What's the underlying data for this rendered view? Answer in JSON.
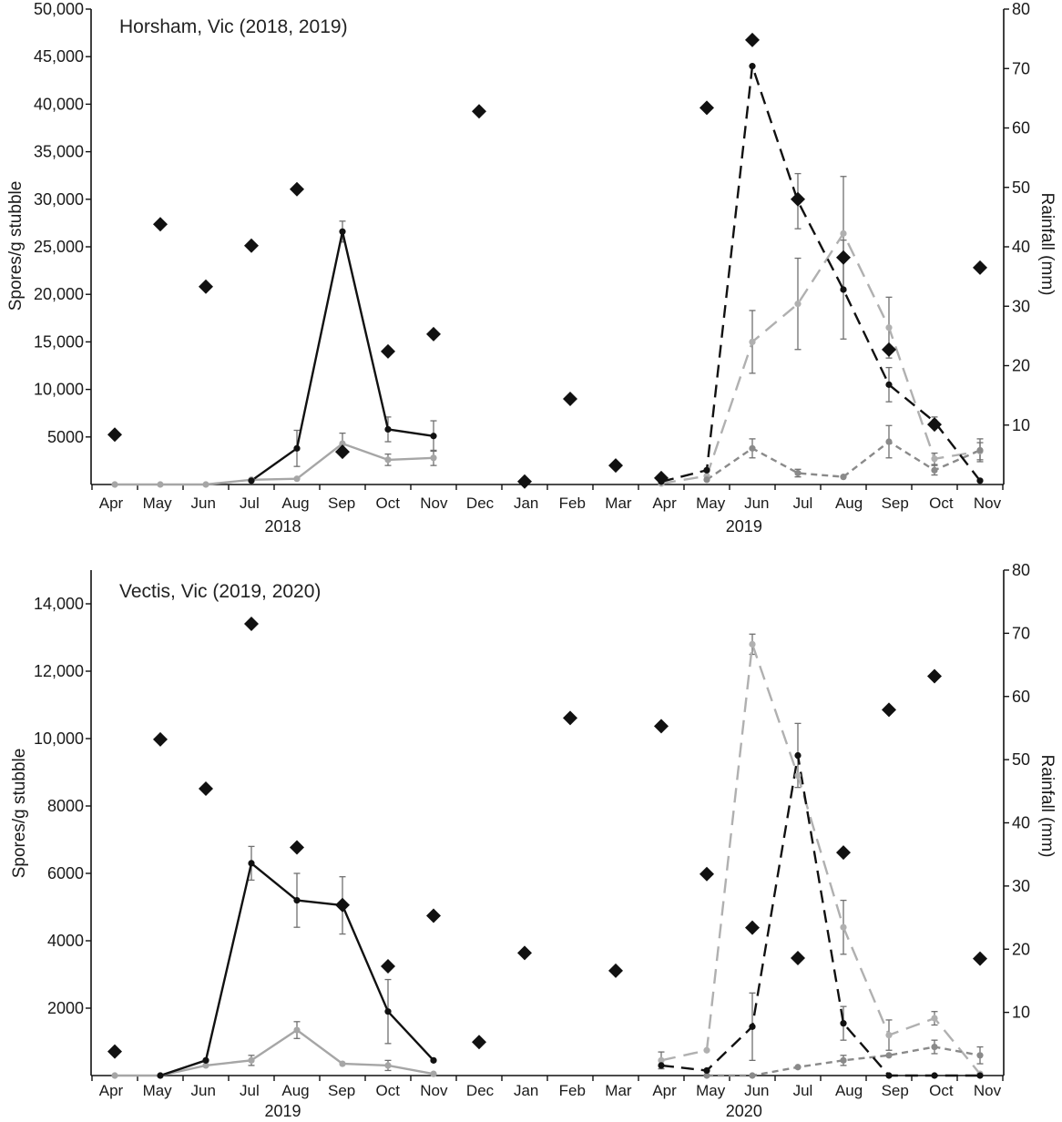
{
  "chart_data": [
    {
      "type": "line",
      "title": "Horsham, Vic (2018, 2019)",
      "ylabel": "Spores/g stubble",
      "y2label": "Rainfall (mm)",
      "ylim": [
        0,
        50000
      ],
      "y2lim": [
        0,
        80
      ],
      "grid": false,
      "yticks": [
        {
          "value": 5000,
          "label": "5000"
        },
        {
          "value": 10000,
          "label": "10,000"
        },
        {
          "value": 15000,
          "label": "15,000"
        },
        {
          "value": 20000,
          "label": "20,000"
        },
        {
          "value": 25000,
          "label": "25,000"
        },
        {
          "value": 30000,
          "label": "30,000"
        },
        {
          "value": 35000,
          "label": "35,000"
        },
        {
          "value": 40000,
          "label": "40,000"
        },
        {
          "value": 45000,
          "label": "45,000"
        },
        {
          "value": 50000,
          "label": "50,000"
        }
      ],
      "y2ticks": [
        {
          "value": 10,
          "label": "10"
        },
        {
          "value": 20,
          "label": "20"
        },
        {
          "value": 30,
          "label": "30"
        },
        {
          "value": 40,
          "label": "40"
        },
        {
          "value": 50,
          "label": "50"
        },
        {
          "value": 60,
          "label": "60"
        },
        {
          "value": 70,
          "label": "70"
        },
        {
          "value": 80,
          "label": "80"
        }
      ],
      "categories": [
        "Apr",
        "May",
        "Jun",
        "Jul",
        "Aug",
        "Sep",
        "Oct",
        "Nov",
        "Dec",
        "Jan",
        "Feb",
        "Mar",
        "Apr",
        "May",
        "Jun",
        "Jul",
        "Aug",
        "Sep",
        "Oct",
        "Nov"
      ],
      "years": [
        {
          "label": "2018",
          "from": 0,
          "to": 8
        },
        {
          "label": "2019",
          "from": 9,
          "to": 19
        }
      ],
      "rainfall": {
        "color": "#111111",
        "values": [
          8.4,
          43.8,
          33.3,
          40.2,
          49.7,
          5.5,
          22.4,
          25.3,
          62.8,
          0.5,
          14.4,
          3.2,
          1.1,
          63.4,
          74.8,
          48.0,
          38.2,
          22.7,
          10.1,
          36.5
        ]
      },
      "series": [
        {
          "color": "#111111",
          "values": [
            null,
            null,
            null,
            400,
            3800,
            26600,
            5800,
            5100,
            null,
            null,
            null,
            null,
            null,
            null,
            null,
            null,
            null,
            null,
            null,
            null
          ],
          "errors": [
            null,
            null,
            null,
            null,
            1900,
            1100,
            1300,
            1600,
            null,
            null,
            null,
            null,
            null,
            null,
            null,
            null,
            null,
            null,
            null,
            null
          ]
        },
        {
          "color": "#a6a6a6",
          "values": [
            0,
            0,
            0,
            500,
            600,
            4300,
            2600,
            2800,
            null,
            null,
            null,
            null,
            null,
            null,
            null,
            null,
            null,
            null,
            null,
            null
          ],
          "errors": [
            null,
            null,
            null,
            null,
            null,
            1100,
            600,
            800,
            null,
            null,
            null,
            null,
            null,
            null,
            null,
            null,
            null,
            null,
            null,
            null
          ]
        },
        {
          "color": "#111111",
          "values": [
            null,
            null,
            null,
            null,
            null,
            null,
            null,
            null,
            null,
            null,
            null,
            null,
            300,
            1500,
            44000,
            29800,
            20500,
            10500,
            6600,
            400
          ],
          "errors": [
            null,
            null,
            null,
            null,
            null,
            null,
            null,
            null,
            null,
            null,
            null,
            null,
            null,
            null,
            null,
            2900,
            5200,
            1800,
            500,
            null
          ]
        },
        {
          "color": "#b0b0b0",
          "values": [
            null,
            null,
            null,
            null,
            null,
            null,
            null,
            null,
            null,
            null,
            null,
            null,
            100,
            900,
            15000,
            19000,
            26400,
            16500,
            2700,
            3500
          ],
          "errors": [
            null,
            null,
            null,
            null,
            null,
            null,
            null,
            null,
            null,
            null,
            null,
            null,
            null,
            null,
            3300,
            4800,
            6000,
            3200,
            600,
            900
          ]
        },
        {
          "color": "#8a8a8a",
          "values": [
            null,
            null,
            null,
            null,
            null,
            null,
            null,
            null,
            null,
            null,
            null,
            null,
            null,
            500,
            3800,
            1200,
            800,
            4500,
            1500,
            3600
          ],
          "errors": [
            null,
            null,
            null,
            null,
            null,
            null,
            null,
            null,
            null,
            null,
            null,
            null,
            null,
            null,
            1000,
            400,
            null,
            1700,
            500,
            1200
          ]
        }
      ]
    },
    {
      "type": "line",
      "title": "Vectis, Vic (2019, 2020)",
      "ylabel": "Spores/g stubble",
      "y2label": "Rainfall (mm)",
      "ylim": [
        0,
        15000
      ],
      "y2lim": [
        0,
        80
      ],
      "grid": false,
      "yticks": [
        {
          "value": 2000,
          "label": "2000"
        },
        {
          "value": 4000,
          "label": "4000"
        },
        {
          "value": 6000,
          "label": "6000"
        },
        {
          "value": 8000,
          "label": "8000"
        },
        {
          "value": 10000,
          "label": "10,000"
        },
        {
          "value": 12000,
          "label": "12,000"
        },
        {
          "value": 14000,
          "label": "14,000"
        }
      ],
      "y2ticks": [
        {
          "value": 10,
          "label": "10"
        },
        {
          "value": 20,
          "label": "20"
        },
        {
          "value": 30,
          "label": "30"
        },
        {
          "value": 40,
          "label": "40"
        },
        {
          "value": 50,
          "label": "50"
        },
        {
          "value": 60,
          "label": "60"
        },
        {
          "value": 70,
          "label": "70"
        },
        {
          "value": 80,
          "label": "80"
        }
      ],
      "categories": [
        "Apr",
        "May",
        "Jun",
        "Jul",
        "Aug",
        "Sep",
        "Oct",
        "Nov",
        "Dec",
        "Jan",
        "Feb",
        "Mar",
        "Apr",
        "May",
        "Jun",
        "Jul",
        "Aug",
        "Sep",
        "Oct",
        "Nov"
      ],
      "years": [
        {
          "label": "2019",
          "from": 0,
          "to": 8
        },
        {
          "label": "2020",
          "from": 9,
          "to": 19
        }
      ],
      "rainfall": {
        "color": "#111111",
        "values": [
          3.8,
          53.2,
          45.4,
          71.5,
          36.1,
          27.0,
          17.3,
          25.3,
          5.3,
          19.4,
          56.6,
          16.6,
          55.3,
          31.9,
          23.4,
          18.6,
          35.3,
          57.9,
          63.2,
          18.5
        ]
      },
      "series": [
        {
          "color": "#111111",
          "values": [
            null,
            0,
            450,
            6300,
            5200,
            5050,
            1900,
            450,
            null,
            null,
            null,
            null,
            null,
            null,
            null,
            null,
            null,
            null,
            null,
            null
          ],
          "errors": [
            null,
            null,
            null,
            500,
            800,
            850,
            950,
            null,
            null,
            null,
            null,
            null,
            null,
            null,
            null,
            null,
            null,
            null,
            null,
            null
          ]
        },
        {
          "color": "#a6a6a6",
          "values": [
            0,
            0,
            300,
            450,
            1350,
            350,
            300,
            50,
            null,
            null,
            null,
            null,
            null,
            null,
            null,
            null,
            null,
            null,
            null,
            null
          ],
          "errors": [
            null,
            null,
            null,
            150,
            250,
            null,
            150,
            null,
            null,
            null,
            null,
            null,
            null,
            null,
            null,
            null,
            null,
            null,
            null,
            null
          ]
        },
        {
          "color": "#111111",
          "values": [
            null,
            null,
            null,
            null,
            null,
            null,
            null,
            null,
            null,
            null,
            null,
            null,
            300,
            150,
            1450,
            9500,
            1550,
            0,
            0,
            0
          ],
          "errors": [
            null,
            null,
            null,
            null,
            null,
            null,
            null,
            null,
            null,
            null,
            null,
            null,
            null,
            null,
            1000,
            950,
            500,
            null,
            null,
            null
          ]
        },
        {
          "color": "#b0b0b0",
          "values": [
            null,
            null,
            null,
            null,
            null,
            null,
            null,
            null,
            null,
            null,
            null,
            null,
            450,
            750,
            12800,
            8900,
            4400,
            1200,
            1700,
            50
          ],
          "errors": [
            null,
            null,
            null,
            null,
            null,
            null,
            null,
            null,
            null,
            null,
            null,
            null,
            250,
            null,
            300,
            null,
            800,
            450,
            200,
            null
          ]
        },
        {
          "color": "#8a8a8a",
          "values": [
            null,
            null,
            null,
            null,
            null,
            null,
            null,
            null,
            null,
            null,
            null,
            null,
            null,
            0,
            0,
            250,
            450,
            600,
            850,
            600
          ],
          "errors": [
            null,
            null,
            null,
            null,
            null,
            null,
            null,
            null,
            null,
            null,
            null,
            null,
            null,
            null,
            null,
            null,
            150,
            null,
            200,
            250
          ]
        }
      ]
    }
  ]
}
